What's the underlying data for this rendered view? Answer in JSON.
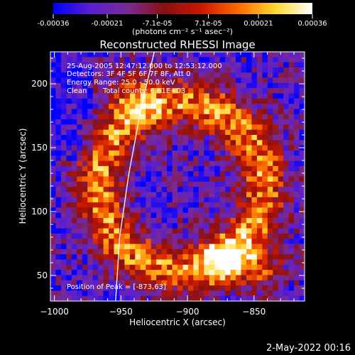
{
  "colorbar": {
    "tick_labels": [
      "-0.00036",
      "-0.00021",
      "-7.1e-05",
      "7.1e-05",
      "0.00021",
      "0.00036"
    ],
    "tick_values": [
      -0.00036,
      -0.00021,
      -7.1e-05,
      7.1e-05,
      0.00021,
      0.00036
    ],
    "range": [
      -0.00036,
      0.00036
    ],
    "units_label": "(photons cm⁻² s⁻¹ asec⁻²)",
    "colors": [
      "#0000ff",
      "#5a1fd0",
      "#7a2a95",
      "#8a1010",
      "#c81800",
      "#ff6a00",
      "#ffd830",
      "#ffffff"
    ]
  },
  "chart_data": {
    "type": "heatmap",
    "title": "Reconstructed RHESSI Image",
    "xlabel": "Heliocentric X (arcsec)",
    "ylabel": "Heliocentric Y (arcsec)",
    "xlim": [
      -1003,
      -812
    ],
    "ylim": [
      30,
      225
    ],
    "x_ticks": [
      -1000,
      -950,
      -900,
      -850
    ],
    "x_tick_labels": [
      "−1000",
      "−950",
      "−900",
      "−850"
    ],
    "y_ticks": [
      50,
      100,
      150,
      200
    ],
    "y_tick_labels": [
      "50",
      "100",
      "150",
      "200"
    ],
    "limb_curve": [
      [
        -954,
        30
      ],
      [
        -951,
        80
      ],
      [
        -944,
        130
      ],
      [
        -935,
        180
      ],
      [
        -925,
        225
      ]
    ],
    "peak": [
      -873,
      63
    ],
    "annotations": [
      "25-Aug-2005 12:47:12.000 to 12:53:12.000",
      "Detectors: 3F 4F 5F 6F 7F 8F, Att 0",
      "Energy Range: 25.0 - 50.0 keV",
      "Clean",
      "Total counts: 6.61E+03",
      "Position of Peak = [-873,63]"
    ]
  },
  "footer": {
    "date": "2-May-2022 00:16"
  }
}
